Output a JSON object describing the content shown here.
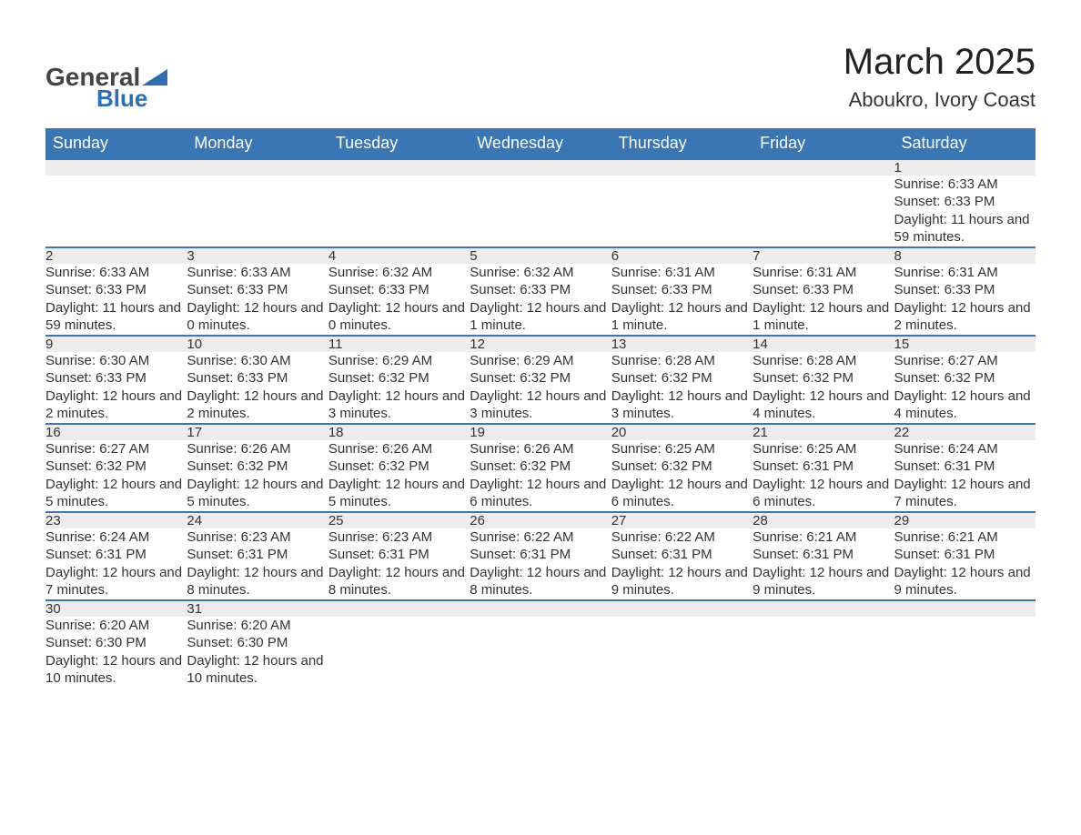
{
  "logo": {
    "text1": "General",
    "text2": "Blue",
    "tri_color": "#2f6fb0"
  },
  "title": "March 2025",
  "subtitle": "Aboukro, Ivory Coast",
  "colors": {
    "header_bg": "#3a76b3",
    "header_text": "#ffffff",
    "daynum_bg": "#ececec",
    "row_border": "#3a76b3",
    "body_text": "#333333"
  },
  "font_sizes": {
    "title": 40,
    "subtitle": 22,
    "th": 18,
    "daynum": 17,
    "detail": 15
  },
  "days_of_week": [
    "Sunday",
    "Monday",
    "Tuesday",
    "Wednesday",
    "Thursday",
    "Friday",
    "Saturday"
  ],
  "weeks": [
    [
      null,
      null,
      null,
      null,
      null,
      null,
      {
        "n": "1",
        "sunrise": "Sunrise: 6:33 AM",
        "sunset": "Sunset: 6:33 PM",
        "daylight": "Daylight: 11 hours and 59 minutes."
      }
    ],
    [
      {
        "n": "2",
        "sunrise": "Sunrise: 6:33 AM",
        "sunset": "Sunset: 6:33 PM",
        "daylight": "Daylight: 11 hours and 59 minutes."
      },
      {
        "n": "3",
        "sunrise": "Sunrise: 6:33 AM",
        "sunset": "Sunset: 6:33 PM",
        "daylight": "Daylight: 12 hours and 0 minutes."
      },
      {
        "n": "4",
        "sunrise": "Sunrise: 6:32 AM",
        "sunset": "Sunset: 6:33 PM",
        "daylight": "Daylight: 12 hours and 0 minutes."
      },
      {
        "n": "5",
        "sunrise": "Sunrise: 6:32 AM",
        "sunset": "Sunset: 6:33 PM",
        "daylight": "Daylight: 12 hours and 1 minute."
      },
      {
        "n": "6",
        "sunrise": "Sunrise: 6:31 AM",
        "sunset": "Sunset: 6:33 PM",
        "daylight": "Daylight: 12 hours and 1 minute."
      },
      {
        "n": "7",
        "sunrise": "Sunrise: 6:31 AM",
        "sunset": "Sunset: 6:33 PM",
        "daylight": "Daylight: 12 hours and 1 minute."
      },
      {
        "n": "8",
        "sunrise": "Sunrise: 6:31 AM",
        "sunset": "Sunset: 6:33 PM",
        "daylight": "Daylight: 12 hours and 2 minutes."
      }
    ],
    [
      {
        "n": "9",
        "sunrise": "Sunrise: 6:30 AM",
        "sunset": "Sunset: 6:33 PM",
        "daylight": "Daylight: 12 hours and 2 minutes."
      },
      {
        "n": "10",
        "sunrise": "Sunrise: 6:30 AM",
        "sunset": "Sunset: 6:33 PM",
        "daylight": "Daylight: 12 hours and 2 minutes."
      },
      {
        "n": "11",
        "sunrise": "Sunrise: 6:29 AM",
        "sunset": "Sunset: 6:32 PM",
        "daylight": "Daylight: 12 hours and 3 minutes."
      },
      {
        "n": "12",
        "sunrise": "Sunrise: 6:29 AM",
        "sunset": "Sunset: 6:32 PM",
        "daylight": "Daylight: 12 hours and 3 minutes."
      },
      {
        "n": "13",
        "sunrise": "Sunrise: 6:28 AM",
        "sunset": "Sunset: 6:32 PM",
        "daylight": "Daylight: 12 hours and 3 minutes."
      },
      {
        "n": "14",
        "sunrise": "Sunrise: 6:28 AM",
        "sunset": "Sunset: 6:32 PM",
        "daylight": "Daylight: 12 hours and 4 minutes."
      },
      {
        "n": "15",
        "sunrise": "Sunrise: 6:27 AM",
        "sunset": "Sunset: 6:32 PM",
        "daylight": "Daylight: 12 hours and 4 minutes."
      }
    ],
    [
      {
        "n": "16",
        "sunrise": "Sunrise: 6:27 AM",
        "sunset": "Sunset: 6:32 PM",
        "daylight": "Daylight: 12 hours and 5 minutes."
      },
      {
        "n": "17",
        "sunrise": "Sunrise: 6:26 AM",
        "sunset": "Sunset: 6:32 PM",
        "daylight": "Daylight: 12 hours and 5 minutes."
      },
      {
        "n": "18",
        "sunrise": "Sunrise: 6:26 AM",
        "sunset": "Sunset: 6:32 PM",
        "daylight": "Daylight: 12 hours and 5 minutes."
      },
      {
        "n": "19",
        "sunrise": "Sunrise: 6:26 AM",
        "sunset": "Sunset: 6:32 PM",
        "daylight": "Daylight: 12 hours and 6 minutes."
      },
      {
        "n": "20",
        "sunrise": "Sunrise: 6:25 AM",
        "sunset": "Sunset: 6:32 PM",
        "daylight": "Daylight: 12 hours and 6 minutes."
      },
      {
        "n": "21",
        "sunrise": "Sunrise: 6:25 AM",
        "sunset": "Sunset: 6:31 PM",
        "daylight": "Daylight: 12 hours and 6 minutes."
      },
      {
        "n": "22",
        "sunrise": "Sunrise: 6:24 AM",
        "sunset": "Sunset: 6:31 PM",
        "daylight": "Daylight: 12 hours and 7 minutes."
      }
    ],
    [
      {
        "n": "23",
        "sunrise": "Sunrise: 6:24 AM",
        "sunset": "Sunset: 6:31 PM",
        "daylight": "Daylight: 12 hours and 7 minutes."
      },
      {
        "n": "24",
        "sunrise": "Sunrise: 6:23 AM",
        "sunset": "Sunset: 6:31 PM",
        "daylight": "Daylight: 12 hours and 8 minutes."
      },
      {
        "n": "25",
        "sunrise": "Sunrise: 6:23 AM",
        "sunset": "Sunset: 6:31 PM",
        "daylight": "Daylight: 12 hours and 8 minutes."
      },
      {
        "n": "26",
        "sunrise": "Sunrise: 6:22 AM",
        "sunset": "Sunset: 6:31 PM",
        "daylight": "Daylight: 12 hours and 8 minutes."
      },
      {
        "n": "27",
        "sunrise": "Sunrise: 6:22 AM",
        "sunset": "Sunset: 6:31 PM",
        "daylight": "Daylight: 12 hours and 9 minutes."
      },
      {
        "n": "28",
        "sunrise": "Sunrise: 6:21 AM",
        "sunset": "Sunset: 6:31 PM",
        "daylight": "Daylight: 12 hours and 9 minutes."
      },
      {
        "n": "29",
        "sunrise": "Sunrise: 6:21 AM",
        "sunset": "Sunset: 6:31 PM",
        "daylight": "Daylight: 12 hours and 9 minutes."
      }
    ],
    [
      {
        "n": "30",
        "sunrise": "Sunrise: 6:20 AM",
        "sunset": "Sunset: 6:30 PM",
        "daylight": "Daylight: 12 hours and 10 minutes."
      },
      {
        "n": "31",
        "sunrise": "Sunrise: 6:20 AM",
        "sunset": "Sunset: 6:30 PM",
        "daylight": "Daylight: 12 hours and 10 minutes."
      },
      null,
      null,
      null,
      null,
      null
    ]
  ]
}
